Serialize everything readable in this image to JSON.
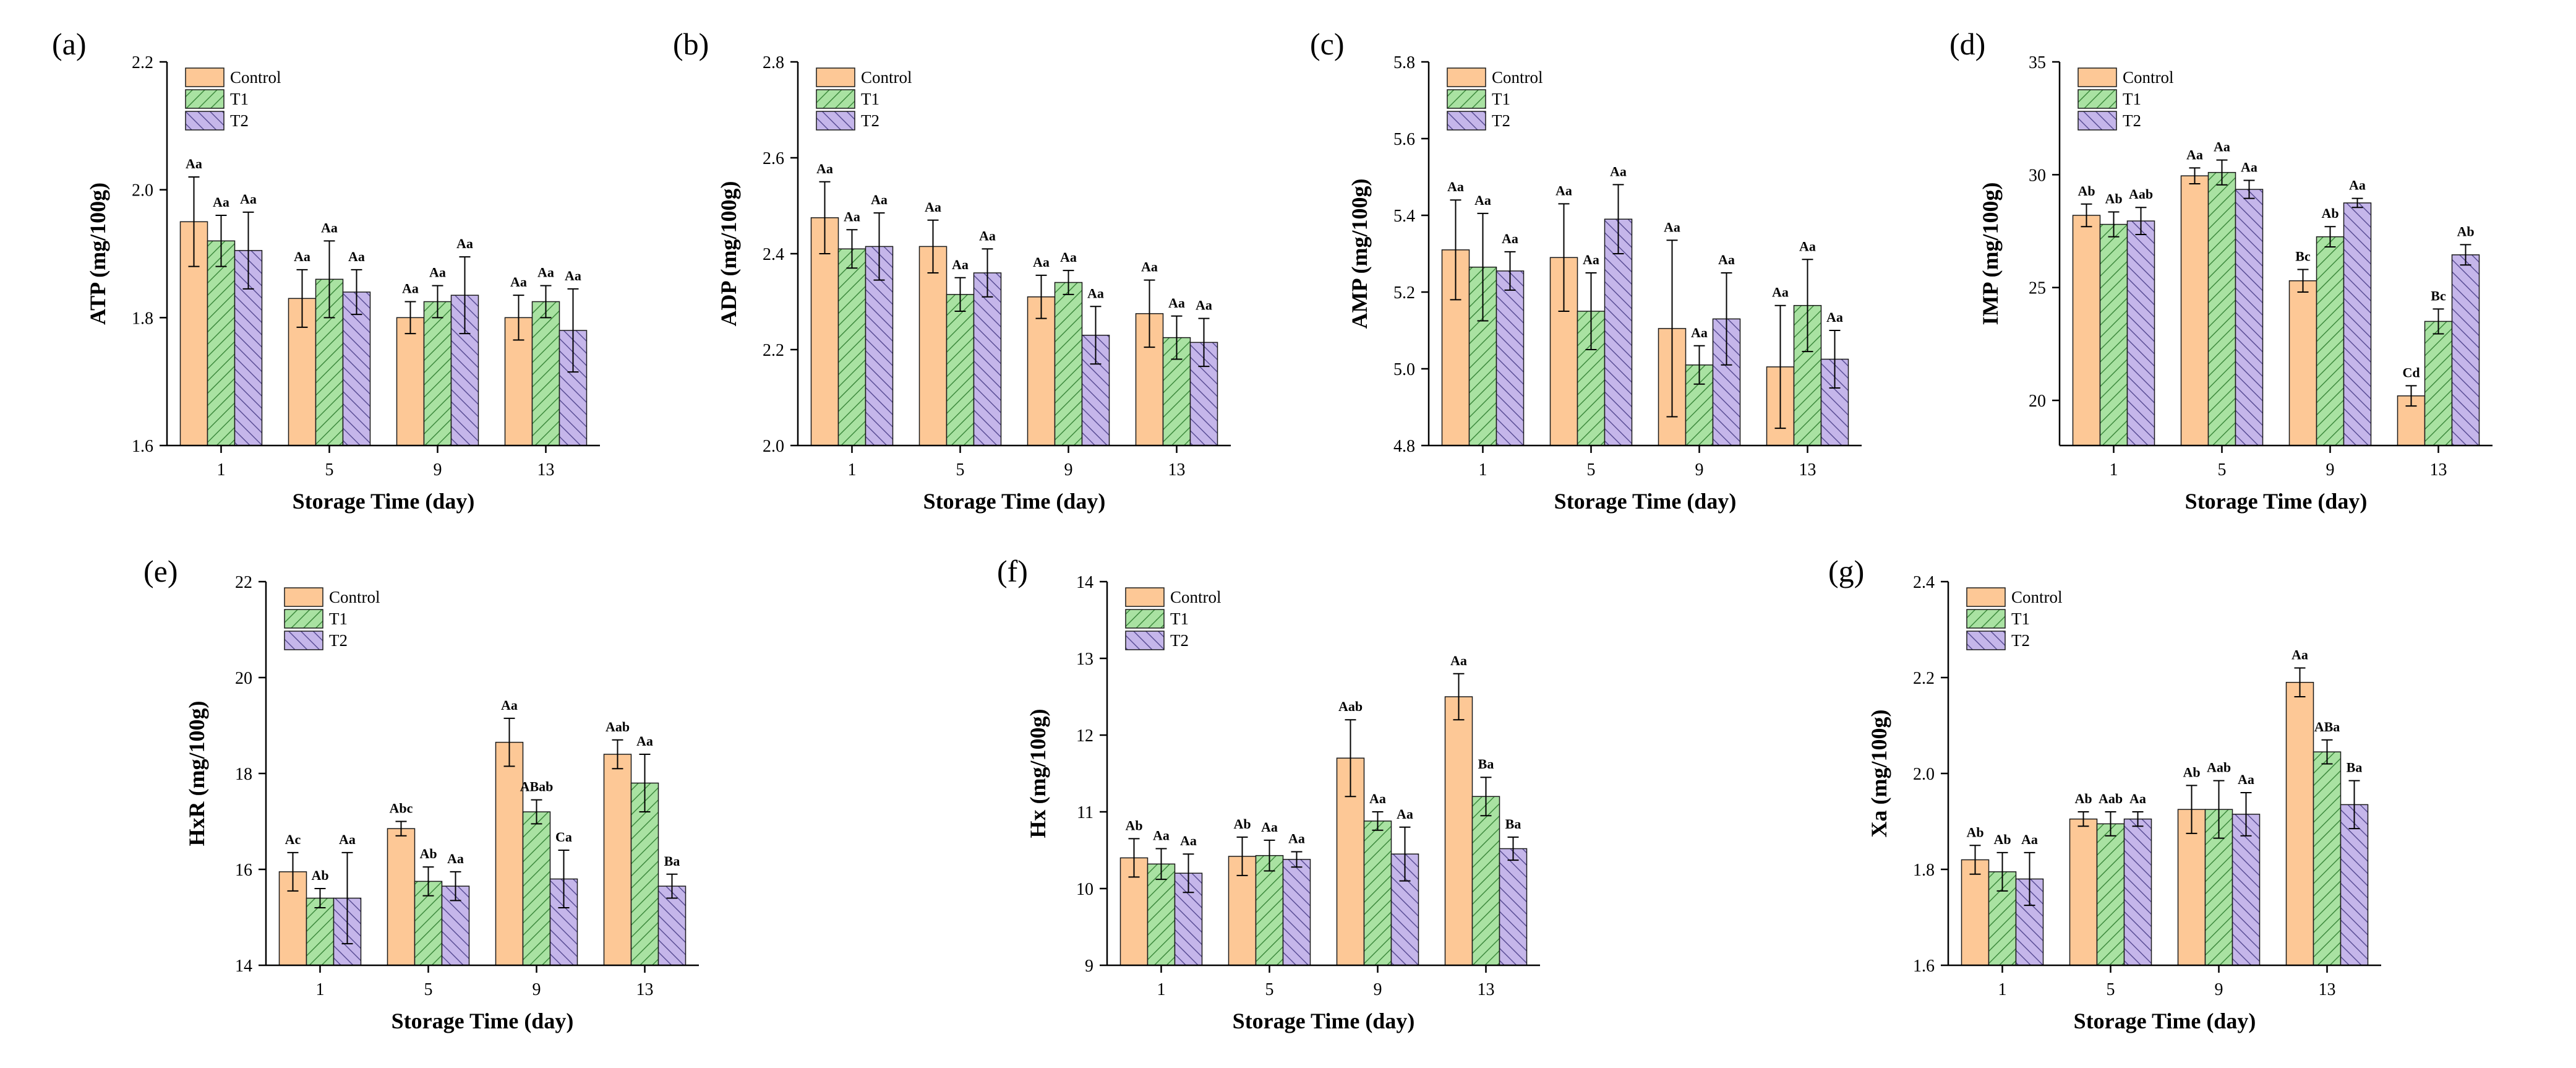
{
  "colors": {
    "Control": "#FDC896",
    "T1": "#A9E2A2",
    "T2": "#C5B6EA",
    "T1_hatch": "#3E8A3E",
    "T2_hatch": "#5A4E95",
    "edge": "#1a1a1a"
  },
  "chart_data": [
    {
      "panel": "(a)",
      "type": "bar",
      "ylabel": "ATP (mg/100g)",
      "xlabel": "Storage Time (day)",
      "ylim": [
        1.6,
        2.2
      ],
      "yticks": [
        "1.6",
        "1.8",
        "2.0",
        "2.2"
      ],
      "categories": [
        "1",
        "5",
        "9",
        "13"
      ],
      "series": [
        {
          "name": "Control",
          "values": [
            1.95,
            1.83,
            1.8,
            1.8
          ],
          "errors": [
            0.07,
            0.045,
            0.025,
            0.035
          ],
          "labels": [
            "Aa",
            "Aa",
            "Aa",
            "Aa"
          ]
        },
        {
          "name": "T1",
          "values": [
            1.92,
            1.86,
            1.825,
            1.825
          ],
          "errors": [
            0.04,
            0.06,
            0.025,
            0.025
          ],
          "labels": [
            "Aa",
            "Aa",
            "Aa",
            "Aa"
          ]
        },
        {
          "name": "T2",
          "values": [
            1.905,
            1.84,
            1.835,
            1.78
          ],
          "errors": [
            0.06,
            0.035,
            0.06,
            0.065
          ],
          "labels": [
            "Aa",
            "Aa",
            "Aa",
            "Aa"
          ]
        }
      ]
    },
    {
      "panel": "(b)",
      "type": "bar",
      "ylabel": "ADP (mg/100g)",
      "xlabel": "Storage Time (day)",
      "ylim": [
        2.0,
        2.8
      ],
      "yticks": [
        "2.0",
        "2.2",
        "2.4",
        "2.6",
        "2.8"
      ],
      "categories": [
        "1",
        "5",
        "9",
        "13"
      ],
      "series": [
        {
          "name": "Control",
          "values": [
            2.475,
            2.415,
            2.31,
            2.275
          ],
          "errors": [
            0.075,
            0.055,
            0.045,
            0.07
          ],
          "labels": [
            "Aa",
            "Aa",
            "Aa",
            "Aa"
          ]
        },
        {
          "name": "T1",
          "values": [
            2.41,
            2.315,
            2.34,
            2.225
          ],
          "errors": [
            0.04,
            0.035,
            0.025,
            0.045
          ],
          "labels": [
            "Aa",
            "Aa",
            "Aa",
            "Aa"
          ]
        },
        {
          "name": "T2",
          "values": [
            2.415,
            2.36,
            2.23,
            2.215
          ],
          "errors": [
            0.07,
            0.05,
            0.06,
            0.05
          ],
          "labels": [
            "Aa",
            "Aa",
            "Aa",
            "Aa"
          ]
        }
      ]
    },
    {
      "panel": "(c)",
      "type": "bar",
      "ylabel": "AMP (mg/100g)",
      "xlabel": "Storage Time (day)",
      "ylim": [
        4.8,
        5.8
      ],
      "yticks": [
        "4.8",
        "5.0",
        "5.2",
        "5.4",
        "5.6",
        "5.8"
      ],
      "categories": [
        "1",
        "5",
        "9",
        "13"
      ],
      "series": [
        {
          "name": "Control",
          "values": [
            5.31,
            5.29,
            5.105,
            5.005
          ],
          "errors": [
            0.13,
            0.14,
            0.23,
            0.16
          ],
          "labels": [
            "Aa",
            "Aa",
            "Aa",
            "Aa"
          ]
        },
        {
          "name": "T1",
          "values": [
            5.265,
            5.15,
            5.01,
            5.165
          ],
          "errors": [
            0.14,
            0.1,
            0.05,
            0.12
          ],
          "labels": [
            "Aa",
            "Aa",
            "Aa",
            "Aa"
          ]
        },
        {
          "name": "T2",
          "values": [
            5.255,
            5.39,
            5.13,
            5.025
          ],
          "errors": [
            0.05,
            0.09,
            0.12,
            0.075
          ],
          "labels": [
            "Aa",
            "Aa",
            "Aa",
            "Aa"
          ]
        }
      ]
    },
    {
      "panel": "(d)",
      "type": "bar",
      "ylabel": "IMP (mg/100g)",
      "xlabel": "Storage Time (day)",
      "ylim": [
        18,
        35
      ],
      "yticks": [
        "20",
        "25",
        "30",
        "35"
      ],
      "ytick_values": [
        20,
        25,
        30,
        35
      ],
      "categories": [
        "1",
        "5",
        "9",
        "13"
      ],
      "series": [
        {
          "name": "Control",
          "values": [
            28.2,
            29.95,
            25.3,
            20.2
          ],
          "errors": [
            0.5,
            0.35,
            0.5,
            0.45
          ],
          "labels": [
            "Ab",
            "Aa",
            "Bc",
            "Cd"
          ]
        },
        {
          "name": "T1",
          "values": [
            27.8,
            30.1,
            27.25,
            23.5
          ],
          "errors": [
            0.55,
            0.55,
            0.45,
            0.55
          ],
          "labels": [
            "Ab",
            "Aa",
            "Ab",
            "Bc"
          ]
        },
        {
          "name": "T2",
          "values": [
            27.95,
            29.35,
            28.75,
            26.45
          ],
          "errors": [
            0.6,
            0.4,
            0.2,
            0.45
          ],
          "labels": [
            "Aab",
            "Aa",
            "Aa",
            "Ab"
          ]
        }
      ]
    },
    {
      "panel": "(e)",
      "type": "bar",
      "ylabel": "HxR (mg/100g)",
      "xlabel": "Storage Time (day)",
      "ylim": [
        14,
        22
      ],
      "yticks": [
        "14",
        "16",
        "18",
        "20",
        "22"
      ],
      "categories": [
        "1",
        "5",
        "9",
        "13"
      ],
      "series": [
        {
          "name": "Control",
          "values": [
            15.95,
            16.85,
            18.65,
            18.4
          ],
          "errors": [
            0.4,
            0.15,
            0.5,
            0.3
          ],
          "labels": [
            "Ac",
            "Abc",
            "Aa",
            "Aab"
          ]
        },
        {
          "name": "T1",
          "values": [
            15.4,
            15.75,
            17.2,
            17.8
          ],
          "errors": [
            0.2,
            0.3,
            0.25,
            0.6
          ],
          "labels": [
            "Ab",
            "Ab",
            "ABab",
            "Aa"
          ]
        },
        {
          "name": "T2",
          "values": [
            15.4,
            15.65,
            15.8,
            15.65
          ],
          "errors": [
            0.95,
            0.3,
            0.6,
            0.25
          ],
          "labels": [
            "Aa",
            "Aa",
            "Ca",
            "Ba"
          ]
        }
      ]
    },
    {
      "panel": "(f)",
      "type": "bar",
      "ylabel": "Hx (mg/100g)",
      "xlabel": "Storage Time (day)",
      "ylim": [
        9,
        14
      ],
      "yticks": [
        "9",
        "10",
        "11",
        "12",
        "13",
        "14"
      ],
      "categories": [
        "1",
        "5",
        "9",
        "13"
      ],
      "series": [
        {
          "name": "Control",
          "values": [
            10.4,
            10.42,
            11.7,
            12.5
          ],
          "errors": [
            0.25,
            0.25,
            0.5,
            0.3
          ],
          "labels": [
            "Ab",
            "Ab",
            "Aab",
            "Aa"
          ]
        },
        {
          "name": "T1",
          "values": [
            10.32,
            10.43,
            10.88,
            11.2
          ],
          "errors": [
            0.2,
            0.2,
            0.12,
            0.25
          ],
          "labels": [
            "Aa",
            "Aa",
            "Aa",
            "Ba"
          ]
        },
        {
          "name": "T2",
          "values": [
            10.2,
            10.38,
            10.45,
            10.52
          ],
          "errors": [
            0.25,
            0.1,
            0.35,
            0.15
          ],
          "labels": [
            "Aa",
            "Aa",
            "Aa",
            "Ba"
          ]
        }
      ]
    },
    {
      "panel": "(g)",
      "type": "bar",
      "ylabel": "Xa (mg/100g)",
      "xlabel": "Storage Time (day)",
      "ylim": [
        1.6,
        2.4
      ],
      "yticks": [
        "1.6",
        "1.8",
        "2.0",
        "2.2",
        "2.4"
      ],
      "categories": [
        "1",
        "5",
        "9",
        "13"
      ],
      "series": [
        {
          "name": "Control",
          "values": [
            1.82,
            1.905,
            1.925,
            2.19
          ],
          "errors": [
            0.03,
            0.015,
            0.05,
            0.03
          ],
          "labels": [
            "Ab",
            "Ab",
            "Ab",
            "Aa"
          ]
        },
        {
          "name": "T1",
          "values": [
            1.795,
            1.895,
            1.925,
            2.045
          ],
          "errors": [
            0.04,
            0.025,
            0.06,
            0.025
          ],
          "labels": [
            "Ab",
            "Aab",
            "Aab",
            "ABa"
          ]
        },
        {
          "name": "T2",
          "values": [
            1.78,
            1.905,
            1.915,
            1.935
          ],
          "errors": [
            0.055,
            0.015,
            0.045,
            0.05
          ],
          "labels": [
            "Aa",
            "Aa",
            "Aa",
            "Ba"
          ]
        }
      ]
    }
  ]
}
